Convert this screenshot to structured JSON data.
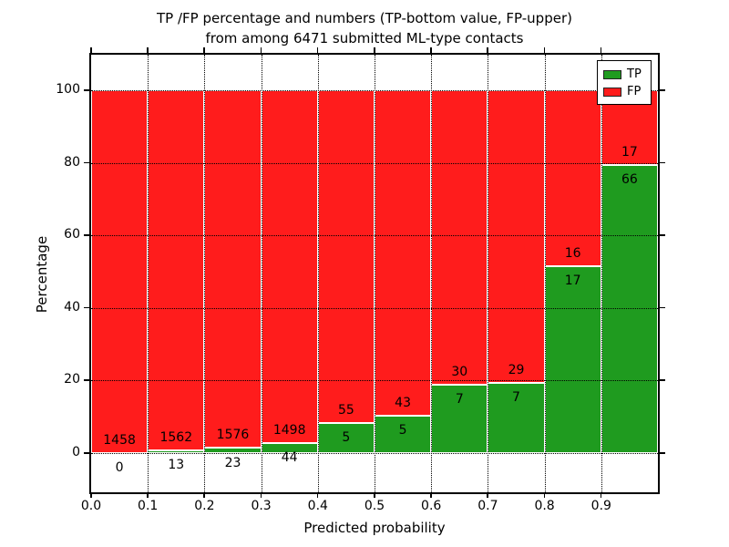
{
  "figure": {
    "title_lines": [
      "TP /FP percentage and numbers (TP-bottom value, FP-upper)",
      "from among 6471 submitted ML-type contacts"
    ]
  },
  "chart_data": {
    "type": "bar",
    "variant": "stacked-percentage",
    "title": "TP /FP percentage and numbers (TP-bottom value, FP-upper) from among 6471 submitted ML-type contacts",
    "xlabel": "Predicted probability",
    "ylabel": "Percentage",
    "xlim": [
      0.0,
      1.0
    ],
    "ylim": [
      -10.8,
      109.8
    ],
    "x_tick_labels": [
      "0.0",
      "0.1",
      "0.2",
      "0.3",
      "0.4",
      "0.5",
      "0.6",
      "0.7",
      "0.8",
      "0.9"
    ],
    "y_tick_values": [
      0,
      20,
      40,
      60,
      80,
      100
    ],
    "grid": "dotted",
    "colors": {
      "tp": "#1f9b1f",
      "fp": "#ff1c1c",
      "bar_edge": "#ffffff"
    },
    "legend": {
      "position": "upper-right",
      "items": [
        {
          "name": "TP",
          "color": "#1f9b1f"
        },
        {
          "name": "FP",
          "color": "#ff1c1c"
        }
      ]
    },
    "bins": [
      {
        "x0": 0.0,
        "x1": 0.1,
        "tp": 0,
        "fp": 1458,
        "tp_pct": 0.0
      },
      {
        "x0": 0.1,
        "x1": 0.2,
        "tp": 13,
        "fp": 1562,
        "tp_pct": 0.83
      },
      {
        "x0": 0.2,
        "x1": 0.3,
        "tp": 23,
        "fp": 1576,
        "tp_pct": 1.44
      },
      {
        "x0": 0.3,
        "x1": 0.4,
        "tp": 44,
        "fp": 1498,
        "tp_pct": 2.85
      },
      {
        "x0": 0.4,
        "x1": 0.5,
        "tp": 5,
        "fp": 55,
        "tp_pct": 8.33
      },
      {
        "x0": 0.5,
        "x1": 0.6,
        "tp": 5,
        "fp": 43,
        "tp_pct": 10.42
      },
      {
        "x0": 0.6,
        "x1": 0.7,
        "tp": 7,
        "fp": 30,
        "tp_pct": 18.92
      },
      {
        "x0": 0.7,
        "x1": 0.8,
        "tp": 7,
        "fp": 29,
        "tp_pct": 19.44
      },
      {
        "x0": 0.8,
        "x1": 0.9,
        "tp": 17,
        "fp": 16,
        "tp_pct": 51.52
      },
      {
        "x0": 0.9,
        "x1": 1.0,
        "tp": 66,
        "fp": 17,
        "tp_pct": 79.52
      }
    ]
  }
}
